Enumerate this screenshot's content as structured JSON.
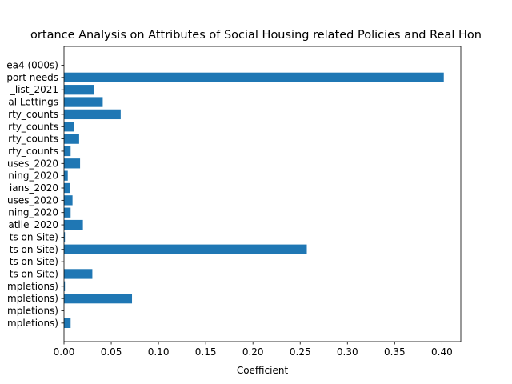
{
  "chart_data": {
    "type": "bar",
    "orientation": "horizontal",
    "title": "ortance Analysis on Attributes of Social Housing related Policies and Real Hon",
    "xlabel": "Coefficient",
    "ylabel": "",
    "xlim": [
      0,
      0.42
    ],
    "xticks": [
      0.0,
      0.05,
      0.1,
      0.15,
      0.2,
      0.25,
      0.3,
      0.35,
      0.4
    ],
    "xtick_labels": [
      "0.00",
      "0.05",
      "0.10",
      "0.15",
      "0.20",
      "0.25",
      "0.30",
      "0.35",
      "0.40"
    ],
    "grid": false,
    "bar_color": "#1f77b4",
    "categories": [
      "ea4 (000s)",
      "port needs",
      "_list_2021",
      "al Lettings",
      "rty_counts",
      "rty_counts",
      "rty_counts",
      "rty_counts",
      "uses_2020",
      "ning_2020",
      "ians_2020",
      "uses_2020",
      "ning_2020",
      "atile_2020",
      "ts on Site)",
      "ts on Site)",
      "ts on Site)",
      "ts on Site)",
      "mpletions)",
      "mpletions)",
      "mpletions)",
      "mpletions)"
    ],
    "values": [
      0.0,
      0.402,
      0.032,
      0.041,
      0.06,
      0.011,
      0.016,
      0.007,
      0.017,
      0.004,
      0.006,
      0.009,
      0.007,
      0.02,
      0.001,
      0.257,
      0.0,
      0.03,
      0.001,
      0.072,
      0.0,
      0.007
    ]
  }
}
